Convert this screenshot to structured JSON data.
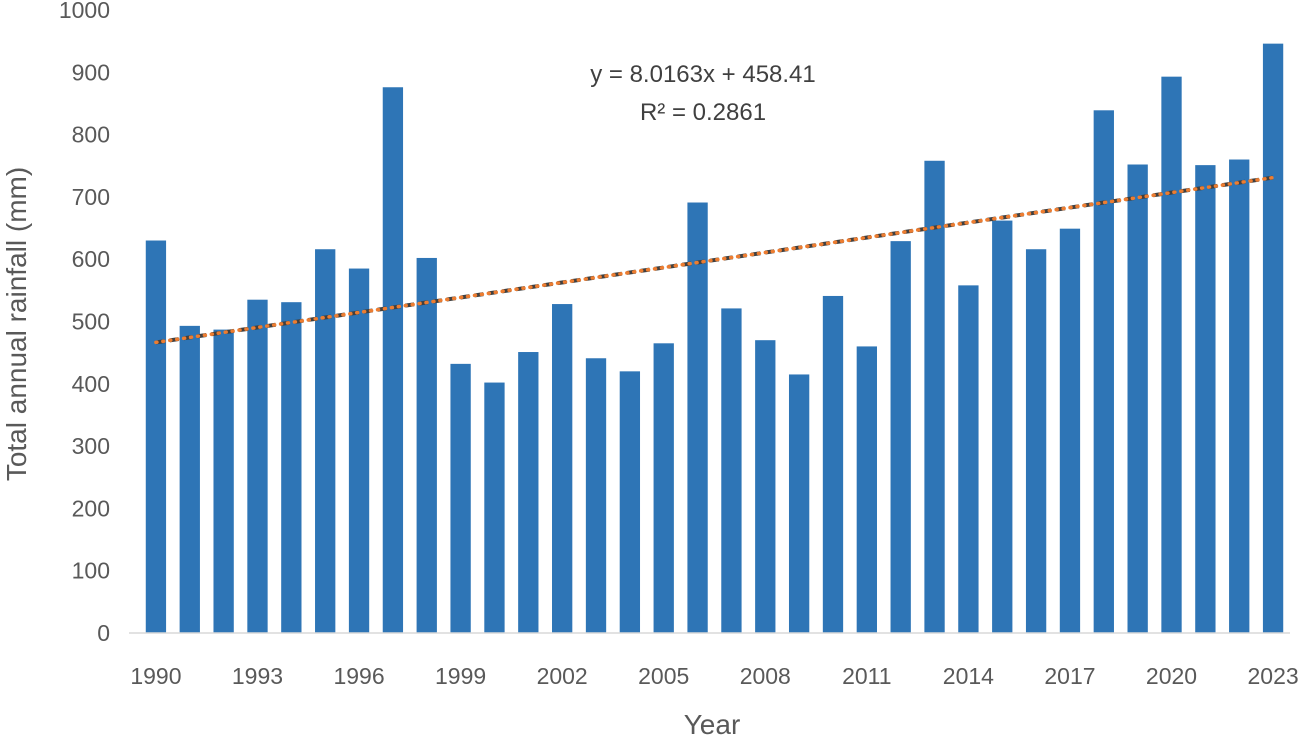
{
  "chart_data": {
    "type": "bar",
    "x": [
      1990,
      1991,
      1992,
      1993,
      1994,
      1995,
      1996,
      1997,
      1998,
      1999,
      2000,
      2001,
      2002,
      2003,
      2004,
      2005,
      2006,
      2007,
      2008,
      2009,
      2010,
      2011,
      2012,
      2013,
      2014,
      2015,
      2016,
      2017,
      2018,
      2019,
      2020,
      2021,
      2022,
      2023
    ],
    "x_tick_labels": [
      "1990",
      "1993",
      "1996",
      "1999",
      "2002",
      "2005",
      "2008",
      "2011",
      "2014",
      "2017",
      "2020",
      "2023"
    ],
    "series": [
      {
        "values": [
          630,
          493,
          487,
          535,
          531,
          616,
          585,
          876,
          602,
          432,
          402,
          451,
          528,
          441,
          420,
          465,
          691,
          521,
          470,
          415,
          541,
          460,
          629,
          758,
          558,
          662,
          616,
          649,
          839,
          752,
          893,
          751,
          760,
          946
        ],
        "color": "#2E75B6"
      }
    ],
    "trendline": {
      "type": "linear",
      "slope": 8.0163,
      "intercept": 458.41,
      "r_squared": 0.2861,
      "color": "#ED7D31",
      "style": "dotted",
      "equation_label": "y = 8.0163x + 458.41",
      "r2_label": "R² = 0.2861"
    },
    "title": "",
    "xlabel": "Year",
    "ylabel": "Total annual rainfall (mm)",
    "ylim": [
      0,
      1000
    ],
    "y_ticks": [
      0,
      100,
      200,
      300,
      400,
      500,
      600,
      700,
      800,
      900,
      1000
    ],
    "grid": false,
    "legend": "none"
  }
}
